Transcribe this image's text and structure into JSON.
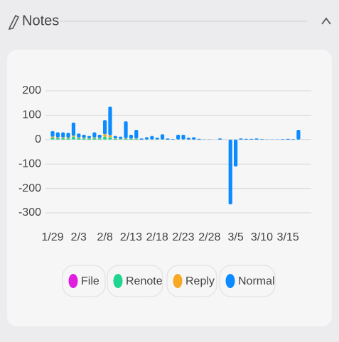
{
  "header": {
    "title": "Notes"
  },
  "chart_data": {
    "type": "stacked-bar",
    "categories": [
      "1/29",
      null,
      null,
      null,
      null,
      "2/3",
      null,
      null,
      null,
      null,
      "2/8",
      null,
      null,
      null,
      null,
      "2/13",
      null,
      null,
      null,
      null,
      "2/18",
      null,
      null,
      null,
      null,
      "2/23",
      null,
      null,
      null,
      null,
      "2/28",
      null,
      null,
      null,
      null,
      "3/5",
      null,
      null,
      null,
      null,
      "3/10",
      null,
      null,
      null,
      null,
      "3/15",
      null,
      null
    ],
    "series": [
      {
        "name": "File",
        "color": "#e01ee0",
        "values": [
          0,
          0,
          0,
          0,
          0,
          0,
          0,
          0,
          0,
          0,
          0,
          0,
          0,
          0,
          0,
          0,
          0,
          0,
          0,
          0,
          0,
          0,
          0,
          0,
          0,
          0,
          0,
          0,
          0,
          0,
          0,
          0,
          0,
          0,
          0,
          0,
          0,
          0,
          0,
          0,
          0,
          0,
          0,
          0,
          0,
          0,
          0,
          0
        ]
      },
      {
        "name": "Renote",
        "color": "#1fd58f",
        "values": [
          8,
          6,
          6,
          5,
          12,
          6,
          5,
          4,
          6,
          5,
          12,
          10,
          3,
          2,
          4,
          3,
          3,
          0,
          1,
          1,
          1,
          1,
          0,
          0,
          1,
          1,
          0,
          0,
          0,
          0,
          0,
          0,
          0,
          0,
          0,
          0,
          0,
          0,
          0,
          0,
          0,
          0,
          0,
          0,
          0,
          0,
          0,
          0
        ]
      },
      {
        "name": "Reply",
        "color": "#f7a825",
        "values": [
          4,
          3,
          3,
          3,
          4,
          3,
          2,
          2,
          3,
          2,
          10,
          8,
          2,
          1,
          2,
          1,
          2,
          0,
          0,
          0,
          0,
          0,
          0,
          0,
          0,
          0,
          0,
          0,
          0,
          0,
          0,
          0,
          0,
          0,
          0,
          0,
          0,
          0,
          0,
          0,
          0,
          0,
          0,
          0,
          0,
          0,
          0,
          0
        ]
      },
      {
        "name": "Normal",
        "color": "#0b8bff",
        "values": [
          23,
          21,
          21,
          20,
          54,
          16,
          13,
          9,
          21,
          13,
          58,
          117,
          10,
          9,
          69,
          16,
          35,
          5,
          9,
          14,
          7,
          21,
          5,
          2,
          19,
          19,
          8,
          10,
          3,
          1,
          1,
          0,
          5,
          0,
          -265,
          -110,
          5,
          3,
          3,
          5,
          2,
          1,
          1,
          1,
          2,
          3,
          2,
          40
        ]
      }
    ],
    "ylim": [
      -300,
      200
    ],
    "yticks": [
      -300,
      -200,
      -100,
      0,
      100,
      200
    ],
    "grid": true
  }
}
